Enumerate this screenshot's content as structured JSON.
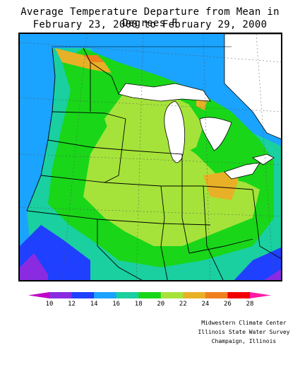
{
  "title": {
    "line1": "Average Temperature Departure from Mean in Degrees F",
    "line2": "February 23, 2000 to February 29, 2000"
  },
  "legend": {
    "labels": [
      "10",
      "12",
      "14",
      "16",
      "18",
      "20",
      "22",
      "24",
      "26",
      "28"
    ],
    "colors": [
      "#c000c8",
      "#8a2be2",
      "#2040ff",
      "#1aa3ff",
      "#1acfa0",
      "#19d619",
      "#a5e33a",
      "#e8b026",
      "#f0801e",
      "#f00000",
      "#ff1aa5"
    ]
  },
  "credits": {
    "line1": "Midwestern Climate Center",
    "line2": "Illinois State Water Survey",
    "line3": "Champaign, Illinois"
  }
}
